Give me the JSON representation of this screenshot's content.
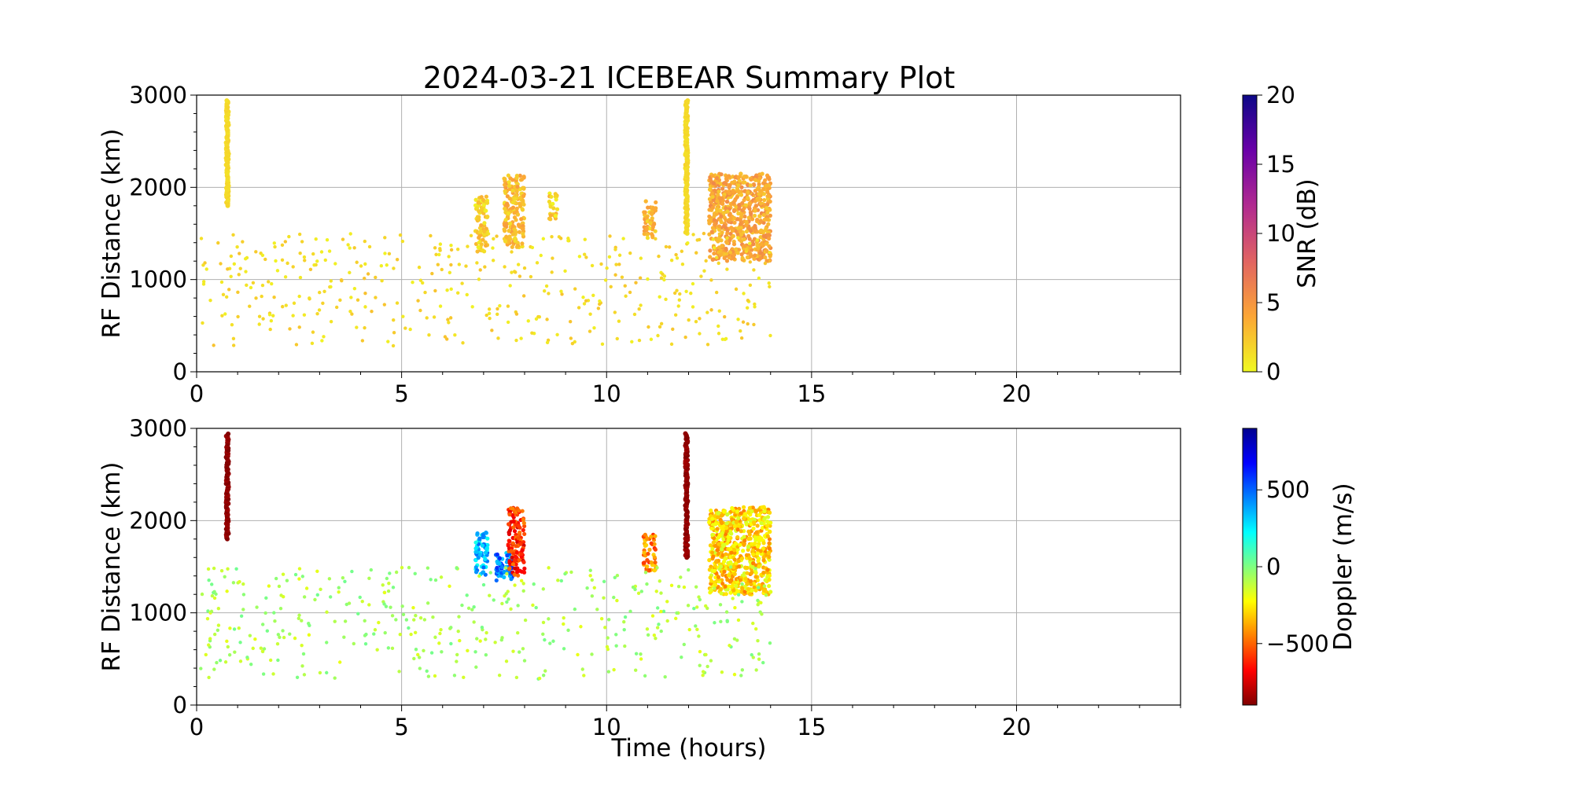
{
  "title": "2024-03-21 ICEBEAR Summary Plot",
  "chart_data": [
    {
      "type": "scatter",
      "name": "snr-panel",
      "ylabel": "RF Distance (km)",
      "xlabel": "",
      "xlim": [
        0,
        24
      ],
      "ylim": [
        0,
        3000
      ],
      "xticks": [
        0,
        5,
        10,
        15,
        20
      ],
      "yticks": [
        0,
        1000,
        2000,
        3000
      ],
      "grid": true,
      "colorbar": {
        "label": "SNR (dB)",
        "colormap": "plasma_r",
        "range": [
          0,
          20
        ],
        "ticks": [
          0,
          5,
          10,
          15,
          20
        ],
        "colors": [
          "#f0f921",
          "#fca636",
          "#e16462",
          "#b12a90",
          "#6a00a8",
          "#0d0887"
        ]
      },
      "features": [
        {
          "kind": "streak",
          "x": 0.75,
          "y_range": [
            1800,
            2950
          ],
          "value": 1.5
        },
        {
          "kind": "streak",
          "x": 11.95,
          "y_range": [
            1500,
            2950
          ],
          "value": 1.5
        },
        {
          "kind": "cluster",
          "x_range": [
            6.8,
            7.1
          ],
          "y_range": [
            1300,
            1900
          ],
          "value": 2
        },
        {
          "kind": "cluster",
          "x_range": [
            7.5,
            8.0
          ],
          "y_range": [
            1350,
            2150
          ],
          "value": 3
        },
        {
          "kind": "cluster",
          "x_range": [
            8.6,
            8.8
          ],
          "y_range": [
            1650,
            1950
          ],
          "value": 2
        },
        {
          "kind": "cluster",
          "x_range": [
            10.9,
            11.2
          ],
          "y_range": [
            1450,
            1850
          ],
          "value": 3
        },
        {
          "kind": "cluster",
          "x_range": [
            12.5,
            14.0
          ],
          "y_range": [
            1200,
            2150
          ],
          "value": 4
        },
        {
          "kind": "scatter",
          "x_range": [
            0.1,
            14.0
          ],
          "y_range": [
            280,
            1500
          ],
          "value": 1.5,
          "count": 420
        }
      ]
    },
    {
      "type": "scatter",
      "name": "doppler-panel",
      "ylabel": "RF Distance (km)",
      "xlabel": "Time (hours)",
      "xlim": [
        0,
        24
      ],
      "ylim": [
        0,
        3000
      ],
      "xticks": [
        0,
        5,
        10,
        15,
        20
      ],
      "yticks": [
        0,
        1000,
        2000,
        3000
      ],
      "grid": true,
      "colorbar": {
        "label": "Doppler (m/s)",
        "colormap": "jet_r",
        "range": [
          -900,
          900
        ],
        "ticks": [
          -500,
          0,
          500
        ],
        "tick_labels": [
          "−500",
          "0",
          "500"
        ],
        "colors": [
          "#800000",
          "#ff0000",
          "#ff8000",
          "#ffff00",
          "#80ff80",
          "#00ffff",
          "#0080ff",
          "#0000ff",
          "#00008f"
        ]
      },
      "features": [
        {
          "kind": "streak",
          "x": 0.75,
          "y_range": [
            1800,
            2950
          ],
          "value": -880
        },
        {
          "kind": "streak",
          "x": 11.95,
          "y_range": [
            1600,
            2950
          ],
          "value": -870
        },
        {
          "kind": "cluster",
          "x_range": [
            6.8,
            7.1
          ],
          "y_range": [
            1400,
            1900
          ],
          "value": 350
        },
        {
          "kind": "cluster",
          "x_range": [
            7.3,
            7.7
          ],
          "y_range": [
            1350,
            1650
          ],
          "value": 450
        },
        {
          "kind": "cluster",
          "x_range": [
            7.6,
            8.0
          ],
          "y_range": [
            1400,
            2150
          ],
          "value": -600
        },
        {
          "kind": "cluster",
          "x_range": [
            10.9,
            11.2
          ],
          "y_range": [
            1450,
            1850
          ],
          "value": -450
        },
        {
          "kind": "cluster",
          "x_range": [
            12.5,
            14.0
          ],
          "y_range": [
            1200,
            2150
          ],
          "value": -300
        },
        {
          "kind": "scatter",
          "x_range": [
            0.1,
            14.0
          ],
          "y_range": [
            280,
            1500
          ],
          "value": -80,
          "count": 420
        }
      ]
    }
  ]
}
